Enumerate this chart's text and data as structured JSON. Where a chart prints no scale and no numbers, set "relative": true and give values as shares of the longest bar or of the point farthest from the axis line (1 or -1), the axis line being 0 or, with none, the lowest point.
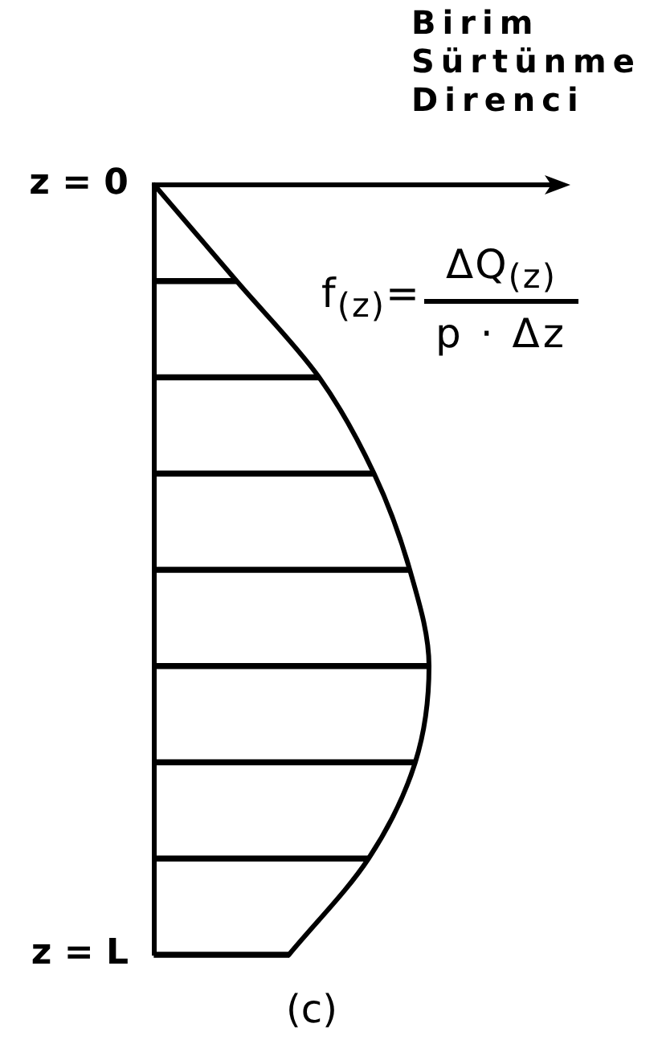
{
  "chart_data": {
    "type": "bar",
    "orientation": "horizontal",
    "relative": true,
    "tick_labels": "y",
    "categories": [
      "z = 0",
      null,
      null,
      null,
      null,
      null,
      null,
      null,
      "z = L"
    ],
    "series": [
      {
        "type": "line",
        "color": "#000000",
        "values": [
          0,
          0.3,
          0.6,
          0.8,
          0.93,
          1,
          0.95,
          0.78,
          0.49
        ]
      },
      {
        "color": "#000000",
        "values": [
          null,
          0.3,
          0.6,
          0.8,
          0.93,
          1,
          0.95,
          0.78,
          0.49
        ]
      }
    ],
    "xlabel": "Birim\nSürtünme\nDirenci",
    "annotations": [
      "f$_{(z)}$=",
      "ΔQ$_{(z)}$",
      "p · Δz",
      "(c)"
    ]
  }
}
